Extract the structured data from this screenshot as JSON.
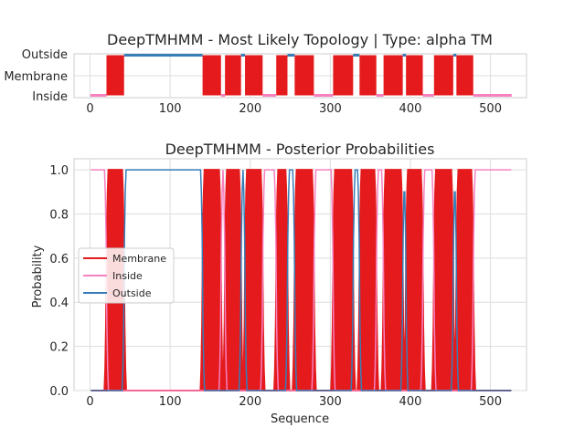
{
  "chart_data": [
    {
      "type": "line",
      "title": "DeepTMHMM - Most Likely Topology | Type: alpha TM",
      "xlim": [
        -20,
        545
      ],
      "xticks": [
        0,
        100,
        200,
        300,
        400,
        500
      ],
      "ylevels": [
        "Inside",
        "Membrane",
        "Outside"
      ],
      "grid": true,
      "sequence_length": 526,
      "segments": [
        {
          "label": "Inside",
          "start": 1,
          "end": 20
        },
        {
          "label": "Membrane",
          "start": 21,
          "end": 42
        },
        {
          "label": "Outside",
          "start": 43,
          "end": 140
        },
        {
          "label": "Membrane",
          "start": 141,
          "end": 163
        },
        {
          "label": "Inside",
          "start": 164,
          "end": 168
        },
        {
          "label": "Membrane",
          "start": 169,
          "end": 188
        },
        {
          "label": "Outside",
          "start": 189,
          "end": 193
        },
        {
          "label": "Membrane",
          "start": 194,
          "end": 215
        },
        {
          "label": "Inside",
          "start": 216,
          "end": 232
        },
        {
          "label": "Membrane",
          "start": 233,
          "end": 246
        },
        {
          "label": "Outside",
          "start": 247,
          "end": 255
        },
        {
          "label": "Membrane",
          "start": 256,
          "end": 279
        },
        {
          "label": "Inside",
          "start": 280,
          "end": 303
        },
        {
          "label": "Membrane",
          "start": 304,
          "end": 328
        },
        {
          "label": "Outside",
          "start": 329,
          "end": 336
        },
        {
          "label": "Membrane",
          "start": 337,
          "end": 357
        },
        {
          "label": "Inside",
          "start": 358,
          "end": 366
        },
        {
          "label": "Membrane",
          "start": 367,
          "end": 390
        },
        {
          "label": "Outside",
          "start": 391,
          "end": 394
        },
        {
          "label": "Membrane",
          "start": 395,
          "end": 415
        },
        {
          "label": "Inside",
          "start": 416,
          "end": 429
        },
        {
          "label": "Membrane",
          "start": 430,
          "end": 453
        },
        {
          "label": "Outside",
          "start": 454,
          "end": 457
        },
        {
          "label": "Membrane",
          "start": 458,
          "end": 478
        },
        {
          "label": "Inside",
          "start": 479,
          "end": 526
        }
      ]
    },
    {
      "type": "line",
      "title": "DeepTMHMM - Posterior Probabilities",
      "xlabel": "Sequence",
      "ylabel": "Probability",
      "xlim": [
        -20,
        545
      ],
      "ylim": [
        0,
        1.05
      ],
      "xticks": [
        0,
        100,
        200,
        300,
        400,
        500
      ],
      "yticks": [
        0.0,
        0.2,
        0.4,
        0.6,
        0.8,
        1.0
      ],
      "grid": true,
      "legend_position": "center-left",
      "series": [
        {
          "name": "Membrane",
          "color": "#e41a1c"
        },
        {
          "name": "Inside",
          "color": "#f781bf"
        },
        {
          "name": "Outside",
          "color": "#377eb8"
        }
      ]
    }
  ]
}
